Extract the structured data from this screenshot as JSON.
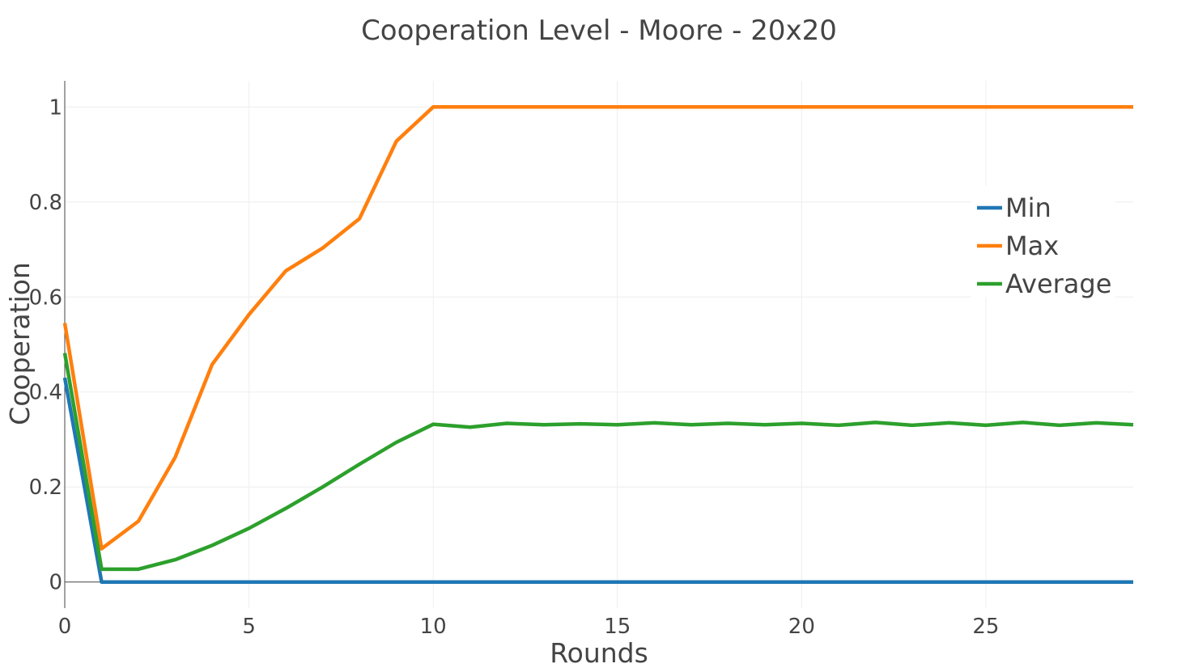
{
  "chart_data": {
    "type": "line",
    "title": "Cooperation Level - Moore - 20x20",
    "xlabel": "Rounds",
    "ylabel": "Cooperation",
    "xlim": [
      0,
      29
    ],
    "ylim": [
      -0.055,
      1.055
    ],
    "grid": true,
    "legend_position": "right",
    "x_ticks": [
      0,
      5,
      10,
      15,
      20,
      25
    ],
    "x_tick_labels": [
      "0",
      "5",
      "10",
      "15",
      "20",
      "25"
    ],
    "y_ticks": [
      0,
      0.2,
      0.4,
      0.6,
      0.8,
      1
    ],
    "y_tick_labels": [
      "0",
      "0.2",
      "0.4",
      "0.6",
      "0.8",
      "1"
    ],
    "x": [
      0,
      1,
      2,
      3,
      4,
      5,
      6,
      7,
      8,
      9,
      10,
      11,
      12,
      13,
      14,
      15,
      16,
      17,
      18,
      19,
      20,
      21,
      22,
      23,
      24,
      25,
      26,
      27,
      28,
      29
    ],
    "series": [
      {
        "name": "Min",
        "color": "#1f77b4",
        "values": [
          0.43,
          0,
          0,
          0,
          0,
          0,
          0,
          0,
          0,
          0,
          0,
          0,
          0,
          0,
          0,
          0,
          0,
          0,
          0,
          0,
          0,
          0,
          0,
          0,
          0,
          0,
          0,
          0,
          0,
          0
        ]
      },
      {
        "name": "Max",
        "color": "#ff7f0e",
        "values": [
          0.545,
          0.07,
          0.128,
          0.263,
          0.458,
          0.563,
          0.655,
          0.703,
          0.765,
          0.928,
          1,
          1,
          1,
          1,
          1,
          1,
          1,
          1,
          1,
          1,
          1,
          1,
          1,
          1,
          1,
          1,
          1,
          1,
          1,
          1
        ]
      },
      {
        "name": "Average",
        "color": "#2ca02c",
        "values": [
          0.482,
          0.027,
          0.027,
          0.047,
          0.077,
          0.113,
          0.155,
          0.2,
          0.248,
          0.294,
          0.332,
          0.326,
          0.334,
          0.331,
          0.333,
          0.331,
          0.335,
          0.331,
          0.334,
          0.331,
          0.334,
          0.33,
          0.336,
          0.33,
          0.335,
          0.33,
          0.336,
          0.33,
          0.335,
          0.331
        ]
      }
    ]
  }
}
